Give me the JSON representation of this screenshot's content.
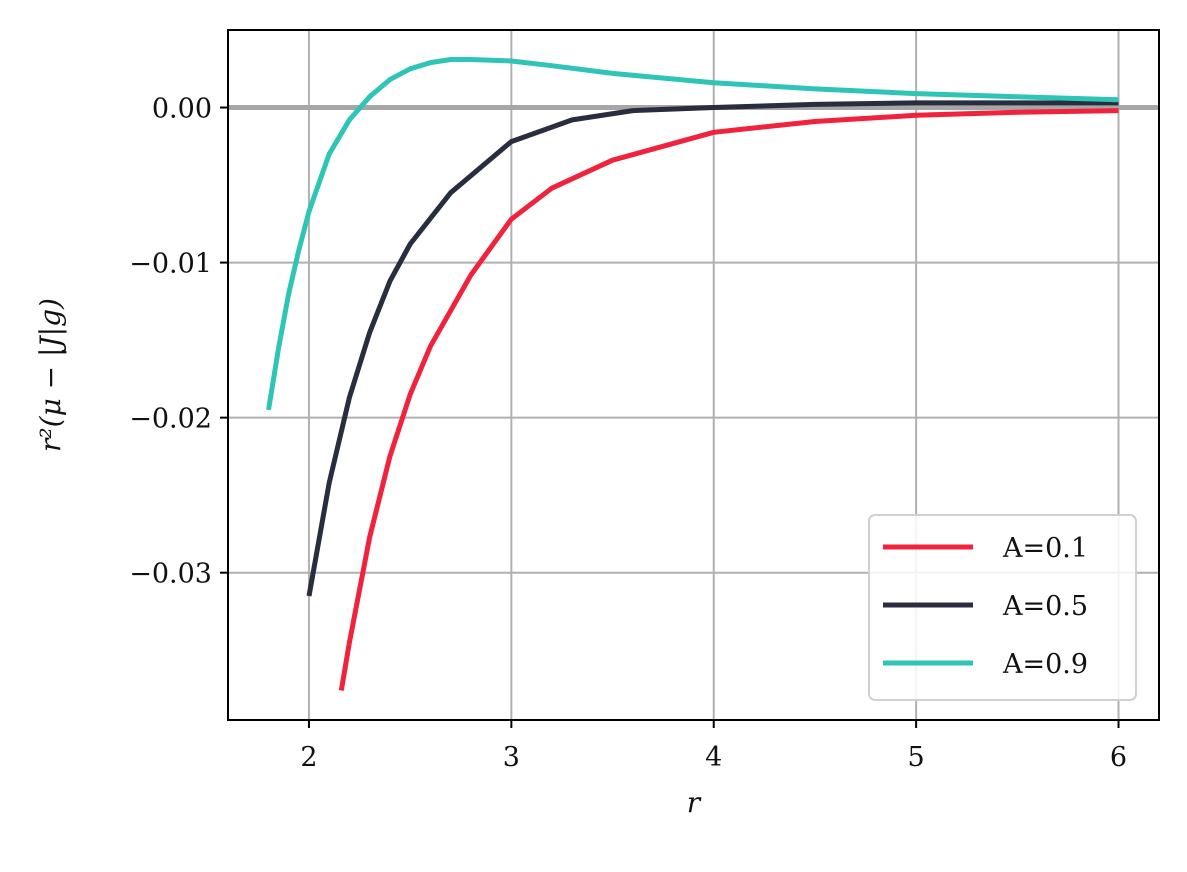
{
  "chart_data": {
    "type": "line",
    "title": "",
    "xlabel": "r",
    "ylabel": "r²(μ − |J|g)",
    "xlim": [
      1.6,
      6.2
    ],
    "ylim": [
      -0.0395,
      0.005
    ],
    "xticks": [
      2,
      3,
      4,
      5,
      6
    ],
    "xtick_labels": [
      "2",
      "3",
      "4",
      "5",
      "6"
    ],
    "yticks": [
      0.0,
      -0.01,
      -0.02,
      -0.03
    ],
    "ytick_labels": [
      "0.00",
      "−0.01",
      "−0.02",
      "−0.03"
    ],
    "grid": true,
    "legend_position": "bottom-right",
    "reference_line": {
      "y": 0.0,
      "color": "#a6a6a6"
    },
    "series": [
      {
        "name": "A=0.1",
        "color": "#f0223c",
        "x": [
          2.16,
          2.2,
          2.3,
          2.4,
          2.5,
          2.6,
          2.8,
          3.0,
          3.2,
          3.5,
          4.0,
          4.5,
          5.0,
          5.5,
          6.0
        ],
        "y": [
          -0.0376,
          -0.0345,
          -0.0277,
          -0.0225,
          -0.0185,
          -0.0154,
          -0.0108,
          -0.0072,
          -0.0052,
          -0.0034,
          -0.0016,
          -0.0009,
          -0.0005,
          -0.0003,
          -0.0002
        ]
      },
      {
        "name": "A=0.5",
        "color": "#282d40",
        "x": [
          2.0,
          2.1,
          2.2,
          2.3,
          2.4,
          2.5,
          2.7,
          3.0,
          3.3,
          3.6,
          4.0,
          4.5,
          5.0,
          5.5,
          6.0
        ],
        "y": [
          -0.0315,
          -0.0242,
          -0.0187,
          -0.0145,
          -0.0112,
          -0.0088,
          -0.0055,
          -0.0022,
          -0.0008,
          -0.0002,
          0.0,
          0.0002,
          0.0003,
          0.0003,
          0.0003
        ]
      },
      {
        "name": "A=0.9",
        "color": "#2ec4b6",
        "x": [
          1.8,
          1.85,
          1.9,
          1.95,
          2.0,
          2.1,
          2.2,
          2.3,
          2.4,
          2.5,
          2.6,
          2.7,
          2.8,
          3.0,
          3.2,
          3.5,
          4.0,
          4.5,
          5.0,
          5.5,
          6.0
        ],
        "y": [
          -0.0195,
          -0.0155,
          -0.012,
          -0.0092,
          -0.0067,
          -0.003,
          -0.0008,
          0.0007,
          0.0018,
          0.0025,
          0.0029,
          0.0031,
          0.0031,
          0.003,
          0.0027,
          0.0022,
          0.0016,
          0.0012,
          0.0009,
          0.0007,
          0.0005
        ]
      }
    ]
  }
}
